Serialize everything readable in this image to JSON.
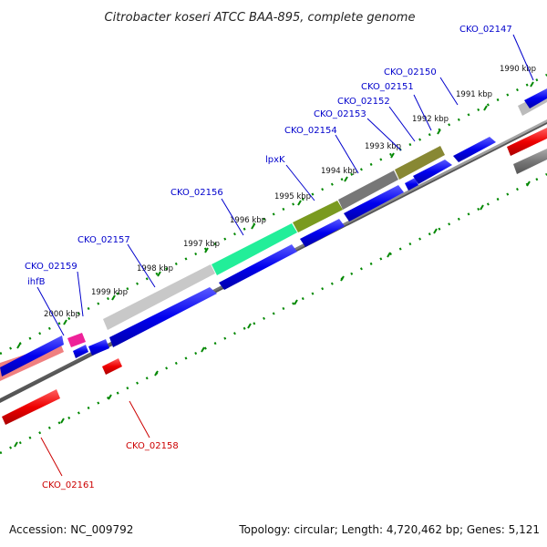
{
  "title": "Citrobacter koseri ATCC BAA-895, complete genome",
  "accession": "Accession: NC_009792",
  "topology": "Topology: circular; Length: 4,720,462 bp; Genes: 5,121",
  "kbp_labels": [
    "1990 kbp",
    "1991 kbp",
    "1992 kbp",
    "1993 kbp",
    "1994 kbp",
    "1995 kbp",
    "1996 kbp",
    "1997 kbp",
    "1998 kbp",
    "1999 kbp",
    "2000 kbp"
  ],
  "gene_labels": {
    "cko_02147": "CKO_02147",
    "cko_02150": "CKO_02150",
    "cko_02151": "CKO_02151",
    "cko_02152": "CKO_02152",
    "cko_02153": "CKO_02153",
    "cko_02154": "CKO_02154",
    "lpxk": "lpxK",
    "cko_02156": "CKO_02156",
    "cko_02157": "CKO_02157",
    "cko_02159": "CKO_02159",
    "ihfb": "ihfB",
    "cko_02158": "CKO_02158",
    "cko_02161": "CKO_02161"
  },
  "colors": {
    "forward_cds": "#0000ee",
    "reverse_cds": "#ee0000",
    "tick": "#008800",
    "backbone": "#888888"
  }
}
